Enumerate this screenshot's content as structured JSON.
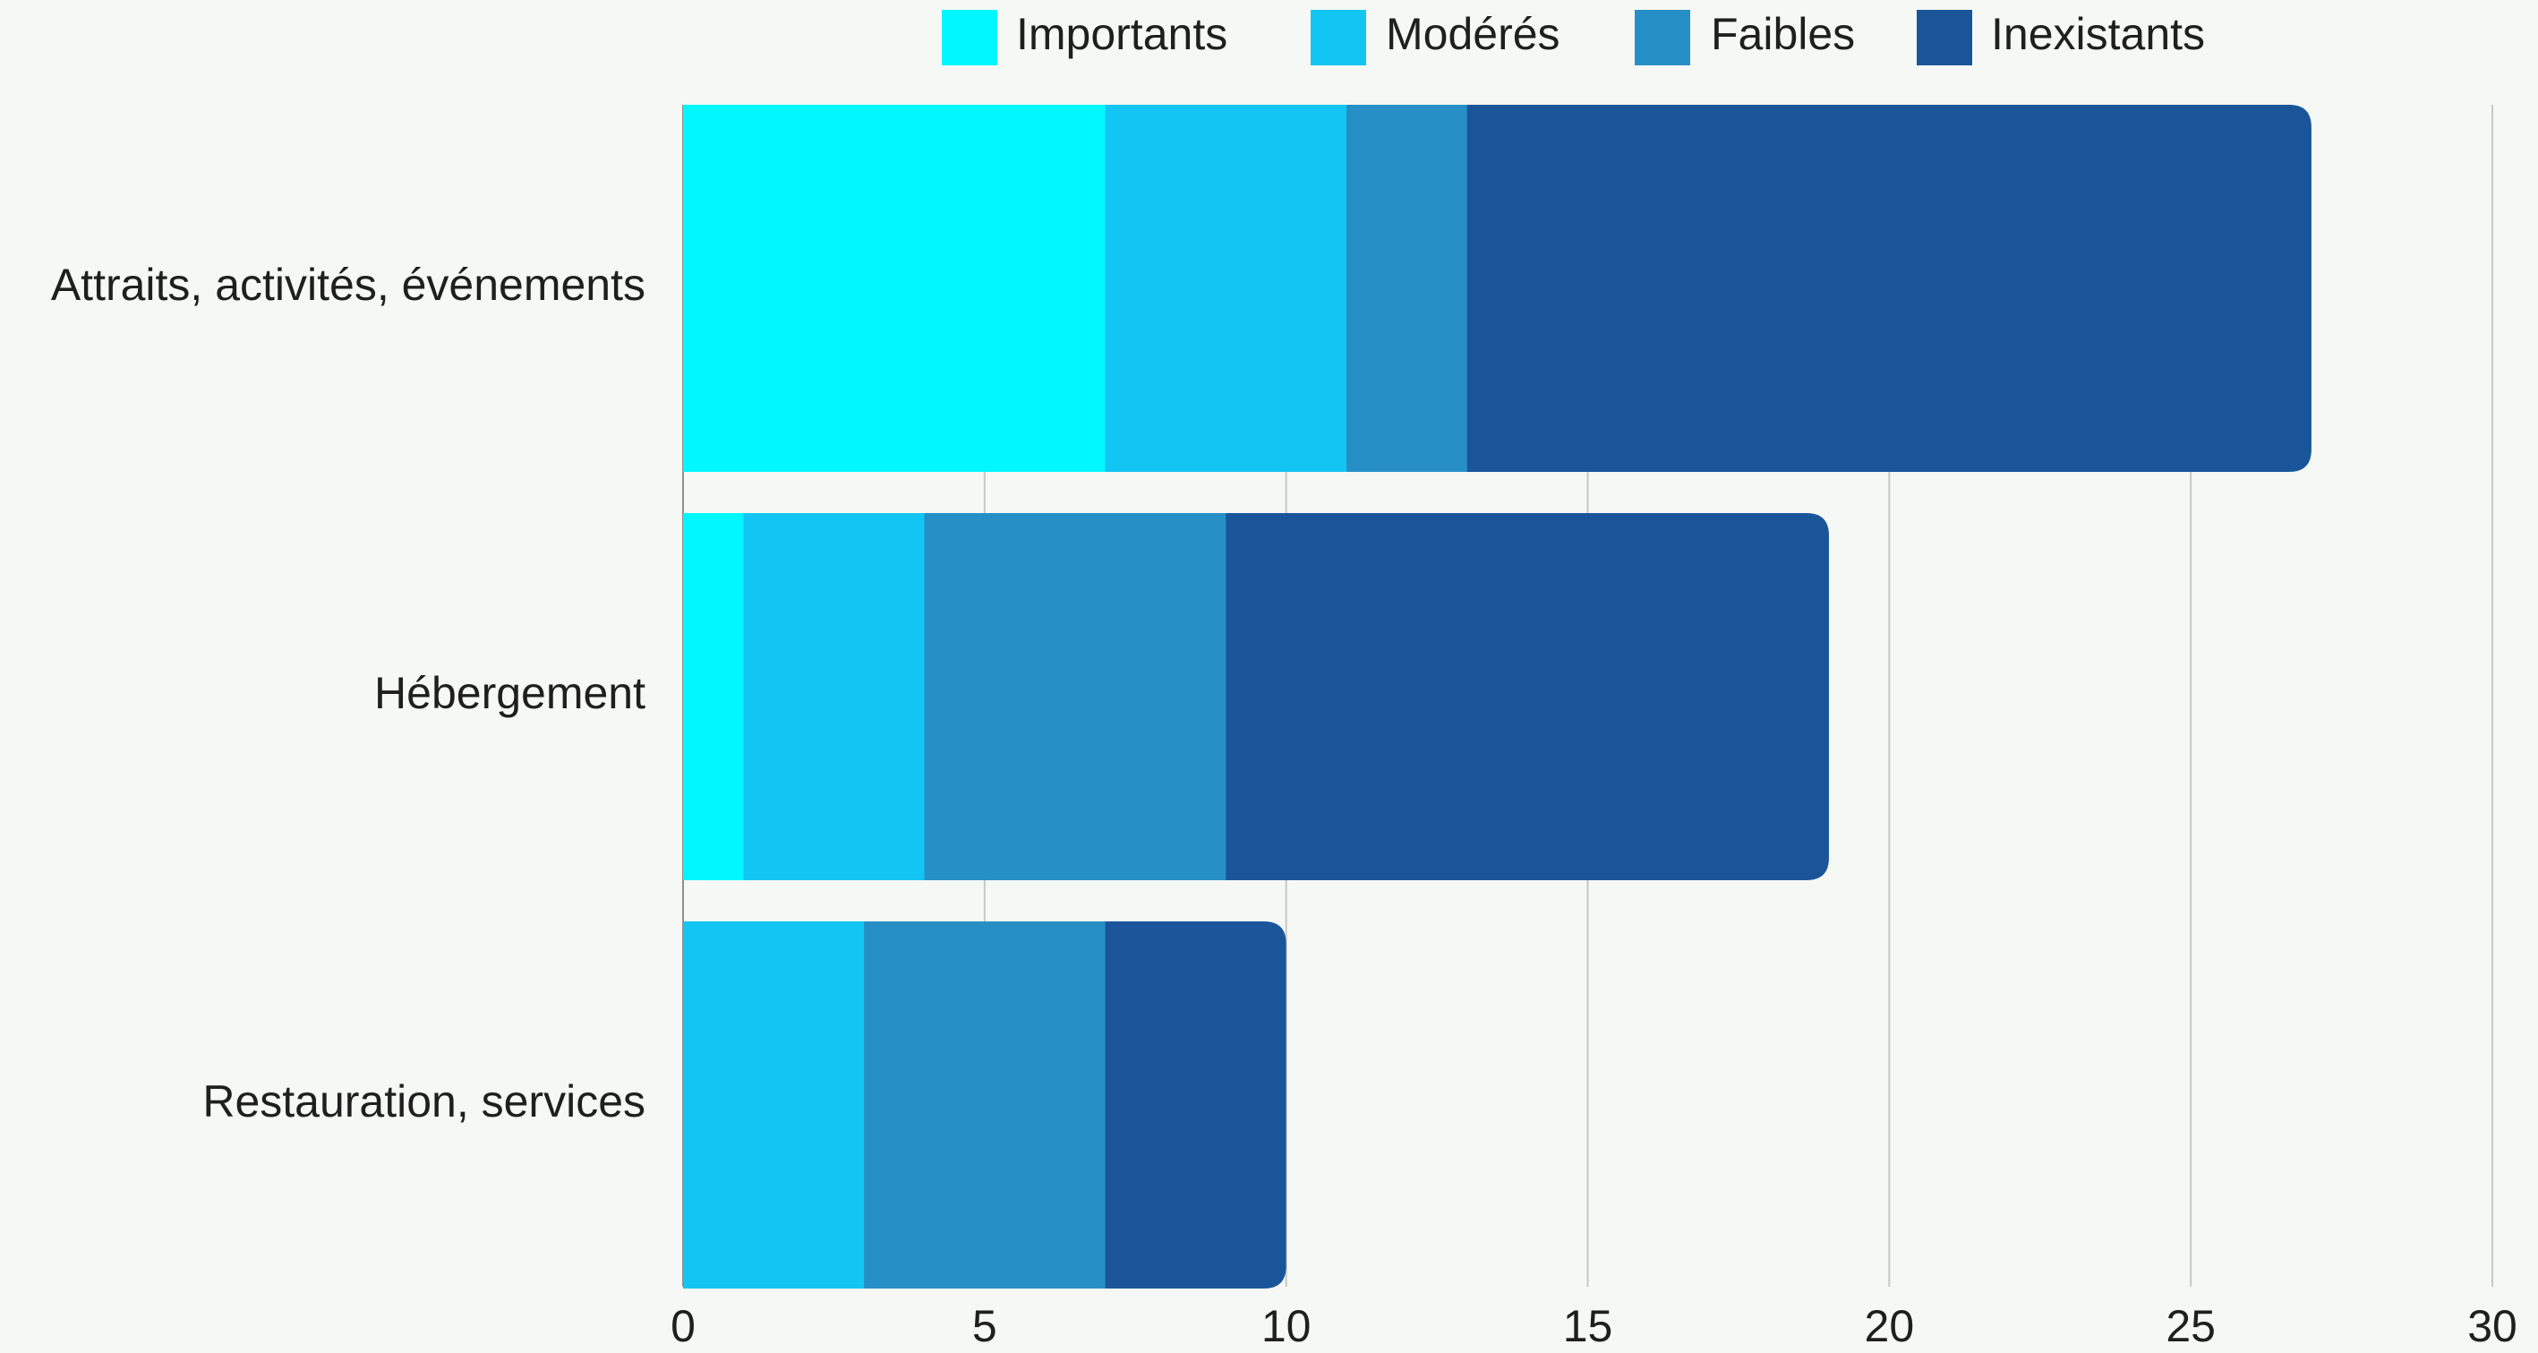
{
  "chart_data": {
    "type": "bar",
    "orientation": "horizontal",
    "stacked": true,
    "categories": [
      "Attraits, activités, événements",
      "Hébergement",
      "Restauration, services"
    ],
    "series": [
      {
        "name": "Importants",
        "color": "#00F7FF",
        "values": [
          7,
          1,
          0
        ]
      },
      {
        "name": "Modérés",
        "color": "#13C5F2",
        "values": [
          4,
          3,
          3
        ]
      },
      {
        "name": "Faibles",
        "color": "#2690C6",
        "values": [
          2,
          5,
          4
        ]
      },
      {
        "name": "Inexistants",
        "color": "#1A559A",
        "values": [
          14,
          10,
          3
        ]
      }
    ],
    "xlim": [
      0,
      30
    ],
    "xticks": [
      0,
      5,
      10,
      15,
      20,
      25,
      30
    ],
    "title": "",
    "xlabel": "",
    "ylabel": "",
    "grid": true,
    "legend": "top-right"
  }
}
